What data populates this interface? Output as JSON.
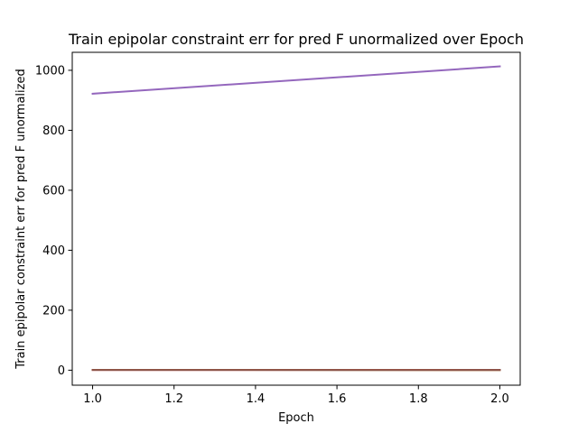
{
  "chart_data": {
    "type": "line",
    "title": "Train epipolar constraint err for pred F unormalized over Epoch",
    "xlabel": "Epoch",
    "ylabel": "Train epipolar constraint err for pred F unormalized",
    "xlim": [
      0.95,
      2.05
    ],
    "ylim": [
      -50,
      1060
    ],
    "xticks": [
      1.0,
      1.2,
      1.4,
      1.6,
      1.8,
      2.0
    ],
    "xtick_labels": [
      "1.0",
      "1.2",
      "1.4",
      "1.6",
      "1.8",
      "2.0"
    ],
    "yticks": [
      0,
      200,
      400,
      600,
      800,
      1000
    ],
    "ytick_labels": [
      "0",
      "200",
      "400",
      "600",
      "800",
      "1000"
    ],
    "grid": false,
    "legend": "none",
    "x": [
      1.0,
      2.0
    ],
    "series": [
      {
        "color": "#9467bd",
        "values": [
          922,
          1013
        ]
      },
      {
        "color": "#1f77b4",
        "values": [
          1.2,
          1.0
        ]
      },
      {
        "color": "#ff7f0e",
        "values": [
          1.1,
          0.9
        ]
      },
      {
        "color": "#2ca02c",
        "values": [
          1.0,
          0.9
        ]
      },
      {
        "color": "#d62728",
        "values": [
          0.9,
          0.8
        ]
      },
      {
        "color": "#8c564b",
        "values": [
          0.8,
          0.7
        ]
      }
    ]
  }
}
